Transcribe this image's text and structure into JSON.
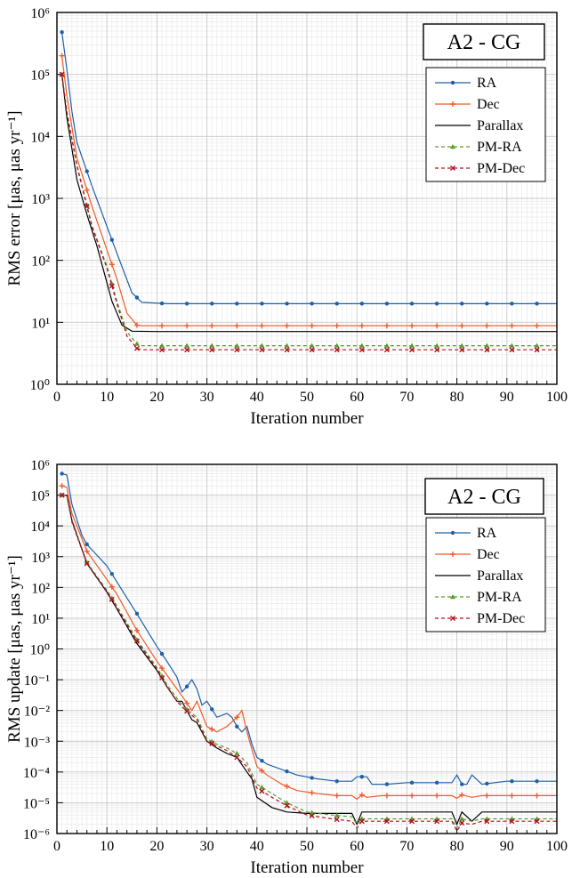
{
  "colors": {
    "RA": "#1f5fa8",
    "Dec": "#f05a28",
    "Parallax": "#000000",
    "PM-RA": "#5a9a2a",
    "PM-Dec": "#b01020",
    "grid_major": "#c8c8c8",
    "grid_minor": "#e6e6e6"
  },
  "chart_data": [
    {
      "type": "line",
      "title": "A2 - CG",
      "xlabel": "Iteration number",
      "ylabel": "RMS error [μas, μas yr⁻¹]",
      "xlim": [
        0,
        100
      ],
      "ylim_exp": [
        0,
        6
      ],
      "log_y": true,
      "grid": true,
      "legend_position": "top-right",
      "x_ticks": [
        "0",
        "10",
        "20",
        "30",
        "40",
        "50",
        "60",
        "70",
        "80",
        "90",
        "100"
      ],
      "y_tick_exponents": [
        0,
        1,
        2,
        3,
        4,
        5,
        6
      ],
      "series": [
        {
          "name": "RA",
          "line": "solid",
          "marker": "dot",
          "points": [
            [
              1,
              480000
            ],
            [
              2,
              120000
            ],
            [
              3,
              25000
            ],
            [
              4,
              8000
            ],
            [
              7,
              1600
            ],
            [
              12,
              130
            ],
            [
              15,
              30
            ],
            [
              17,
              21
            ],
            [
              22,
              20
            ],
            [
              30,
              20
            ],
            [
              50,
              20
            ],
            [
              75,
              20
            ],
            [
              100,
              20
            ]
          ]
        },
        {
          "name": "Dec",
          "line": "solid",
          "marker": "plus",
          "points": [
            [
              1,
              200000
            ],
            [
              2,
              45000
            ],
            [
              4,
              4500
            ],
            [
              7,
              750
            ],
            [
              12,
              50
            ],
            [
              14,
              14
            ],
            [
              16,
              9
            ],
            [
              17,
              8.8
            ],
            [
              30,
              8.8
            ],
            [
              60,
              8.8
            ],
            [
              100,
              8.8
            ]
          ]
        },
        {
          "name": "Parallax",
          "line": "solid",
          "marker": "none",
          "points": [
            [
              1,
              100000
            ],
            [
              2,
              20000
            ],
            [
              4,
              2000
            ],
            [
              6,
              550
            ],
            [
              8,
              170
            ],
            [
              11,
              22
            ],
            [
              13,
              9
            ],
            [
              15,
              7.2
            ],
            [
              20,
              7.1
            ],
            [
              50,
              7.1
            ],
            [
              100,
              7.1
            ]
          ]
        },
        {
          "name": "PM-RA",
          "line": "dashed",
          "marker": "triangle",
          "points": [
            [
              1,
              100000
            ],
            [
              2,
              25000
            ],
            [
              4,
              3500
            ],
            [
              7,
              370
            ],
            [
              10,
              80
            ],
            [
              12,
              22
            ],
            [
              14,
              7
            ],
            [
              16,
              4.5
            ],
            [
              17,
              4.2
            ],
            [
              30,
              4.2
            ],
            [
              60,
              4.2
            ],
            [
              100,
              4.2
            ]
          ]
        },
        {
          "name": "PM-Dec",
          "line": "dashed",
          "marker": "x",
          "points": [
            [
              1,
              100000
            ],
            [
              2,
              24000
            ],
            [
              4,
              3300
            ],
            [
              7,
              350
            ],
            [
              10,
              75
            ],
            [
              12,
              20
            ],
            [
              14,
              6
            ],
            [
              16,
              3.8
            ],
            [
              17,
              3.6
            ],
            [
              30,
              3.6
            ],
            [
              60,
              3.6
            ],
            [
              100,
              3.6
            ]
          ]
        }
      ]
    },
    {
      "type": "line",
      "title": "A2 - CG",
      "xlabel": "Iteration number",
      "ylabel": "RMS update [μas, μas yr⁻¹]",
      "xlim": [
        0,
        100
      ],
      "ylim_exp": [
        -6,
        6
      ],
      "log_y": true,
      "grid": true,
      "legend_position": "top-right",
      "x_ticks": [
        "0",
        "10",
        "20",
        "30",
        "40",
        "50",
        "60",
        "70",
        "80",
        "90",
        "100"
      ],
      "y_tick_exponents": [
        6,
        5,
        4,
        3,
        2,
        1,
        0,
        -1,
        -2,
        -3,
        -4,
        -5,
        -6
      ],
      "series": [
        {
          "name": "RA",
          "line": "solid",
          "marker": "dot",
          "points": [
            [
              1,
              500000
            ],
            [
              2,
              450000
            ],
            [
              3,
              50000
            ],
            [
              5,
              5000
            ],
            [
              6,
              2500
            ],
            [
              10,
              500
            ],
            [
              12,
              150
            ],
            [
              16,
              14
            ],
            [
              20,
              1.2
            ],
            [
              22,
              0.4
            ],
            [
              24,
              0.12
            ],
            [
              25,
              0.04
            ],
            [
              26,
              0.06
            ],
            [
              27,
              0.1
            ],
            [
              28,
              0.05
            ],
            [
              29,
              0.015
            ],
            [
              30,
              0.02
            ],
            [
              32,
              0.006
            ],
            [
              34,
              0.008
            ],
            [
              35,
              0.006
            ],
            [
              36,
              0.003
            ],
            [
              37,
              0.002
            ],
            [
              38,
              0.003
            ],
            [
              39,
              0.0008
            ],
            [
              40,
              0.0003
            ],
            [
              42,
              0.00018
            ],
            [
              45,
              0.00012
            ],
            [
              48,
              8e-05
            ],
            [
              52,
              6e-05
            ],
            [
              56,
              5e-05
            ],
            [
              59,
              5e-05
            ],
            [
              60,
              7e-05
            ],
            [
              62,
              7e-05
            ],
            [
              63,
              4e-05
            ],
            [
              66,
              4e-05
            ],
            [
              70,
              4.5e-05
            ],
            [
              79,
              4.5e-05
            ],
            [
              80,
              8e-05
            ],
            [
              81,
              4e-05
            ],
            [
              82,
              4e-05
            ],
            [
              83,
              8e-05
            ],
            [
              85,
              4e-05
            ],
            [
              90,
              5e-05
            ],
            [
              100,
              5e-05
            ]
          ]
        },
        {
          "name": "Dec",
          "line": "solid",
          "marker": "plus",
          "points": [
            [
              1,
              200000
            ],
            [
              2,
              180000
            ],
            [
              3,
              25000
            ],
            [
              6,
              1500
            ],
            [
              10,
              180
            ],
            [
              12,
              60
            ],
            [
              16,
              4
            ],
            [
              20,
              0.4
            ],
            [
              24,
              0.05
            ],
            [
              25,
              0.03
            ],
            [
              27,
              0.01
            ],
            [
              28,
              0.02
            ],
            [
              30,
              0.003
            ],
            [
              32,
              0.002
            ],
            [
              34,
              0.003
            ],
            [
              36,
              0.006
            ],
            [
              37,
              0.01
            ],
            [
              38,
              0.002
            ],
            [
              40,
              0.00015
            ],
            [
              42,
              8e-05
            ],
            [
              45,
              4e-05
            ],
            [
              48,
              2.5e-05
            ],
            [
              52,
              2e-05
            ],
            [
              56,
              1.7e-05
            ],
            [
              59,
              1.7e-05
            ],
            [
              60,
              1.3e-05
            ],
            [
              61,
              1.8e-05
            ],
            [
              62,
              1.5e-05
            ],
            [
              65,
              1.7e-05
            ],
            [
              70,
              1.7e-05
            ],
            [
              79,
              1.7e-05
            ],
            [
              80,
              1.4e-05
            ],
            [
              81,
              1.8e-05
            ],
            [
              83,
              1.5e-05
            ],
            [
              85,
              1.7e-05
            ],
            [
              100,
              1.7e-05
            ]
          ]
        },
        {
          "name": "Parallax",
          "line": "solid",
          "marker": "none",
          "points": [
            [
              1,
              100000
            ],
            [
              2,
              100000
            ],
            [
              3,
              15000
            ],
            [
              6,
              600
            ],
            [
              10,
              70
            ],
            [
              12,
              20
            ],
            [
              16,
              1.5
            ],
            [
              20,
              0.2
            ],
            [
              22,
              0.06
            ],
            [
              24,
              0.02
            ],
            [
              25,
              0.02
            ],
            [
              27,
              0.005
            ],
            [
              28,
              0.004
            ],
            [
              30,
              0.001
            ],
            [
              32,
              0.0006
            ],
            [
              34,
              0.0004
            ],
            [
              36,
              0.0003
            ],
            [
              38,
              0.0001
            ],
            [
              39,
              6e-05
            ],
            [
              40,
              1.5e-05
            ],
            [
              43,
              7e-06
            ],
            [
              46,
              5e-06
            ],
            [
              50,
              4.5e-06
            ],
            [
              55,
              4.5e-06
            ],
            [
              59,
              4.5e-06
            ],
            [
              60,
              2e-06
            ],
            [
              61,
              5e-06
            ],
            [
              65,
              5e-06
            ],
            [
              79,
              5e-06
            ],
            [
              80,
              2e-06
            ],
            [
              81,
              5e-06
            ],
            [
              83,
              2.5e-06
            ],
            [
              85,
              5e-06
            ],
            [
              100,
              5e-06
            ]
          ]
        },
        {
          "name": "PM-RA",
          "line": "dashed",
          "marker": "triangle",
          "points": [
            [
              1,
              100000
            ],
            [
              2,
              100000
            ],
            [
              3,
              14000
            ],
            [
              6,
              650
            ],
            [
              10,
              80
            ],
            [
              12,
              25
            ],
            [
              16,
              2
            ],
            [
              20,
              0.25
            ],
            [
              22,
              0.07
            ],
            [
              24,
              0.025
            ],
            [
              25,
              0.015
            ],
            [
              27,
              0.008
            ],
            [
              28,
              0.006
            ],
            [
              30,
              0.0012
            ],
            [
              32,
              0.0008
            ],
            [
              34,
              0.0006
            ],
            [
              36,
              0.0004
            ],
            [
              38,
              0.0002
            ],
            [
              40,
              4e-05
            ],
            [
              43,
              2e-05
            ],
            [
              46,
              1e-05
            ],
            [
              50,
              5e-06
            ],
            [
              55,
              4e-06
            ],
            [
              59,
              3.5e-06
            ],
            [
              60,
              2e-06
            ],
            [
              61,
              3e-06
            ],
            [
              65,
              3e-06
            ],
            [
              79,
              3e-06
            ],
            [
              80,
              1.5e-06
            ],
            [
              81,
              3e-06
            ],
            [
              83,
              2.5e-06
            ],
            [
              85,
              3e-06
            ],
            [
              100,
              3e-06
            ]
          ]
        },
        {
          "name": "PM-Dec",
          "line": "dashed",
          "marker": "x",
          "points": [
            [
              1,
              100000
            ],
            [
              2,
              100000
            ],
            [
              3,
              13000
            ],
            [
              6,
              600
            ],
            [
              10,
              75
            ],
            [
              12,
              22
            ],
            [
              16,
              1.8
            ],
            [
              20,
              0.22
            ],
            [
              22,
              0.06
            ],
            [
              24,
              0.02
            ],
            [
              25,
              0.013
            ],
            [
              27,
              0.007
            ],
            [
              28,
              0.005
            ],
            [
              30,
              0.001
            ],
            [
              32,
              0.0007
            ],
            [
              34,
              0.0005
            ],
            [
              36,
              0.0003
            ],
            [
              38,
              0.00015
            ],
            [
              40,
              3e-05
            ],
            [
              43,
              1.5e-05
            ],
            [
              46,
              8e-06
            ],
            [
              50,
              4e-06
            ],
            [
              55,
              3e-06
            ],
            [
              59,
              2.5e-06
            ],
            [
              60,
              1.5e-06
            ],
            [
              61,
              2.5e-06
            ],
            [
              65,
              2.5e-06
            ],
            [
              79,
              2.5e-06
            ],
            [
              80,
              1.2e-06
            ],
            [
              81,
              2.2e-06
            ],
            [
              83,
              2e-06
            ],
            [
              85,
              2.5e-06
            ],
            [
              100,
              2.5e-06
            ]
          ]
        }
      ]
    }
  ]
}
